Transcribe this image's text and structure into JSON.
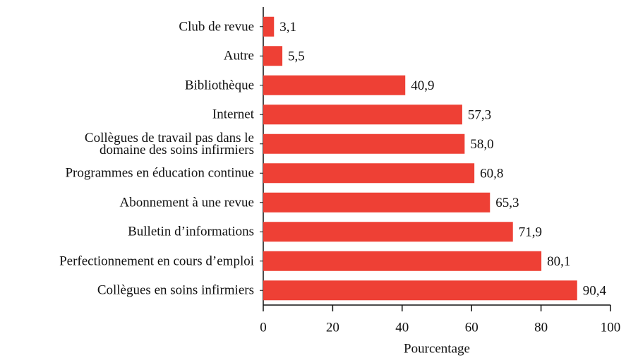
{
  "chart_data": {
    "type": "barh",
    "categories": [
      "Club de revue",
      "Autre",
      "Bibliothèque",
      "Internet",
      "Collègues de travail pas dans le\ndomaine des soins infirmiers",
      "Programmes en éducation continue",
      "Abonnement à une revue",
      "Bulletin d’informations",
      "Perfectionnement en cours d’emploi",
      "Collègues en soins infirmiers"
    ],
    "values": [
      3.1,
      5.5,
      40.9,
      57.3,
      58.0,
      60.8,
      65.3,
      71.9,
      80.1,
      90.4
    ],
    "value_labels": [
      "3,1",
      "5,5",
      "40,9",
      "57,3",
      "58,0",
      "60,8",
      "65,3",
      "71,9",
      "80,1",
      "90,4"
    ],
    "color": "#ee4035",
    "xlabel": "Pourcentage",
    "xlim": [
      0,
      100
    ],
    "xticks": [
      0,
      20,
      40,
      60,
      80,
      100
    ]
  }
}
